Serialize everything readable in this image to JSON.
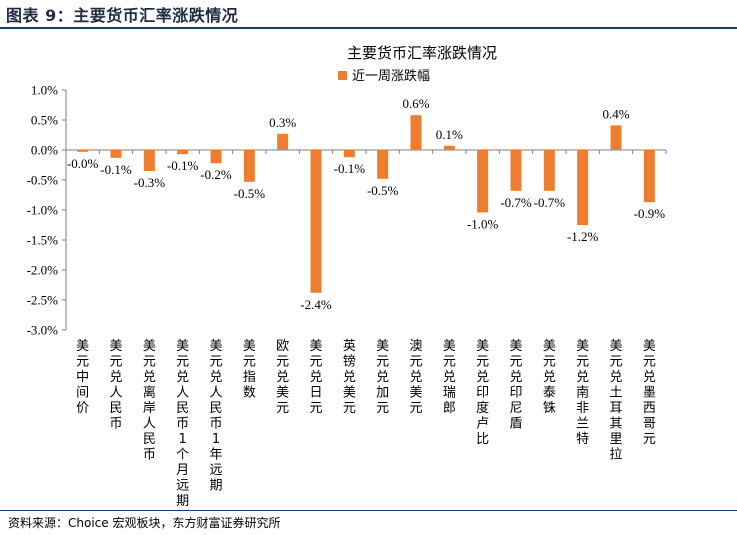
{
  "figure": {
    "caption": "图表 9：主要货币汇率涨跌情况",
    "source": "资料来源：Choice 宏观板块，东方财富证券研究所"
  },
  "chart_data": {
    "type": "bar",
    "title": "主要货币汇率涨跌情况",
    "legend_position": "top",
    "grid": false,
    "bar_color": "#ED7D31",
    "ylim": [
      -3.0,
      1.0
    ],
    "yticks": [
      1.0,
      0.5,
      0.0,
      -0.5,
      -1.0,
      -1.5,
      -2.0,
      -2.5,
      -3.0
    ],
    "ytick_labels": [
      "1.0%",
      "0.5%",
      "0.0%",
      "-0.5%",
      "-1.0%",
      "-1.5%",
      "-2.0%",
      "-2.5%",
      "-3.0%"
    ],
    "categories": [
      "美元中间价",
      "美元兑人民币",
      "美元兑离岸人民币",
      "美元兑人民币1个月远期",
      "美元兑人民币1年远期",
      "美元指数",
      "欧元兑美元",
      "美元兑日元",
      "英镑兑美元",
      "美元兑加元",
      "澳元兑美元",
      "美元兑瑞郎",
      "美元兑印度卢比",
      "美元兑印尼盾",
      "美元兑泰铢",
      "美元兑南非兰特",
      "美元兑土耳其里拉",
      "美元兑墨西哥元"
    ],
    "series": [
      {
        "name": "近一周涨跌幅",
        "values": [
          -0.03,
          -0.13,
          -0.35,
          -0.07,
          -0.22,
          -0.53,
          0.27,
          -2.38,
          -0.12,
          -0.48,
          0.58,
          0.07,
          -1.04,
          -0.68,
          -0.68,
          -1.25,
          0.41,
          -0.87
        ],
        "labels": [
          "-0.0%",
          "-0.1%",
          "-0.3%",
          "-0.1%",
          "-0.2%",
          "-0.5%",
          "0.3%",
          "-2.4%",
          "-0.1%",
          "-0.5%",
          "0.6%",
          "0.1%",
          "-1.0%",
          "-0.7%",
          "-0.7%",
          "-1.2%",
          "0.4%",
          "-0.9%"
        ]
      }
    ]
  }
}
